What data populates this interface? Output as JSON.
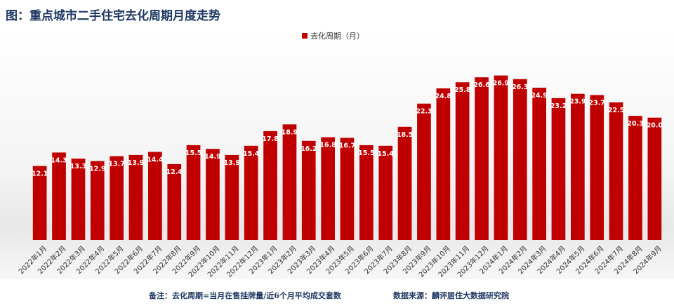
{
  "title": "图：重点城市二手住宅去化周期月度走势",
  "colors": {
    "bar": "#c00000",
    "title": "#1f3864",
    "label": "#ffffff"
  },
  "footnote_left": "备注：去化周期=当月在售挂牌量/近6个月平均成交套数",
  "footnote_right": "数据来源：麟评居住大数据研究院",
  "chart_data": {
    "type": "bar",
    "legend": "top-center",
    "grid": false,
    "ylim": [
      0,
      28
    ],
    "categories": [
      "2022年1月",
      "2022年2月",
      "2022年3月",
      "2022年4月",
      "2022年5月",
      "2022年6月",
      "2022年7月",
      "2022年8月",
      "2022年9月",
      "2022年10月",
      "2022年11月",
      "2022年12月",
      "2023年1月",
      "2023年2月",
      "2023年3月",
      "2023年4月",
      "2023年5月",
      "2023年6月",
      "2023年7月",
      "2023年8月",
      "2023年9月",
      "2023年10月",
      "2023年11月",
      "2023年12月",
      "2024年1月",
      "2024年2月",
      "2024年3月",
      "2024年4月",
      "2024年5月",
      "2024年6月",
      "2024年7月",
      "2024年8月",
      "2024年9月"
    ],
    "series": [
      {
        "name": "去化周期（月）",
        "values": [
          12.1,
          14.3,
          13.3,
          12.9,
          13.7,
          13.9,
          14.4,
          12.4,
          15.5,
          14.9,
          13.9,
          15.4,
          17.8,
          18.9,
          16.2,
          16.8,
          16.7,
          15.5,
          15.4,
          18.5,
          22.3,
          24.8,
          25.8,
          26.6,
          26.9,
          26.3,
          24.9,
          23.2,
          23.9,
          23.7,
          22.5,
          20.3,
          20.0
        ],
        "labels": [
          "12.1",
          "14.3",
          "13.3",
          "12.9",
          "13.7",
          "13.9",
          "14.4",
          "12.4",
          "15.5",
          "14.9",
          "13.9",
          "15.4",
          "17.8",
          "18.9",
          "16.2",
          "16.8",
          "16.7",
          "15.5",
          "15.4",
          "18.5",
          "22.3",
          "24.8",
          "25.8",
          "26.6",
          "26.9",
          "26.3",
          "24.9",
          "23.2",
          "23.9",
          "23.7",
          "22.5",
          "20.3",
          "20.0"
        ]
      }
    ]
  }
}
